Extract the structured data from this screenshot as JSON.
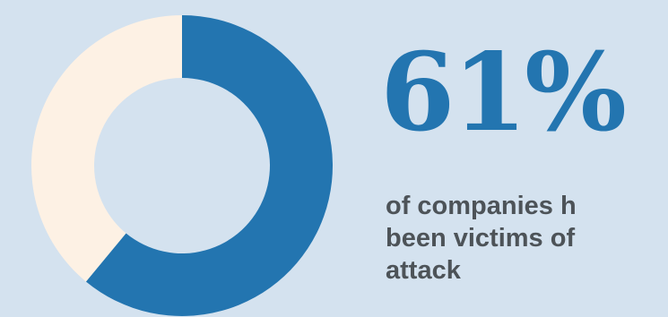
{
  "chart_data": {
    "type": "pie",
    "categories": [
      "",
      ""
    ],
    "values": [
      61,
      39
    ],
    "colors": [
      "#2375b0",
      "#fdf1e4"
    ],
    "donut": true,
    "start": "top",
    "direction": "clockwise"
  },
  "headline": {
    "value": "61%"
  },
  "caption": {
    "lines": [
      "of companies h",
      "been victims of",
      "attack"
    ]
  },
  "colors": {
    "background": "#d4e2ef",
    "accent": "#2375b0",
    "text": "#4d5358",
    "remainder": "#fdf1e4"
  }
}
